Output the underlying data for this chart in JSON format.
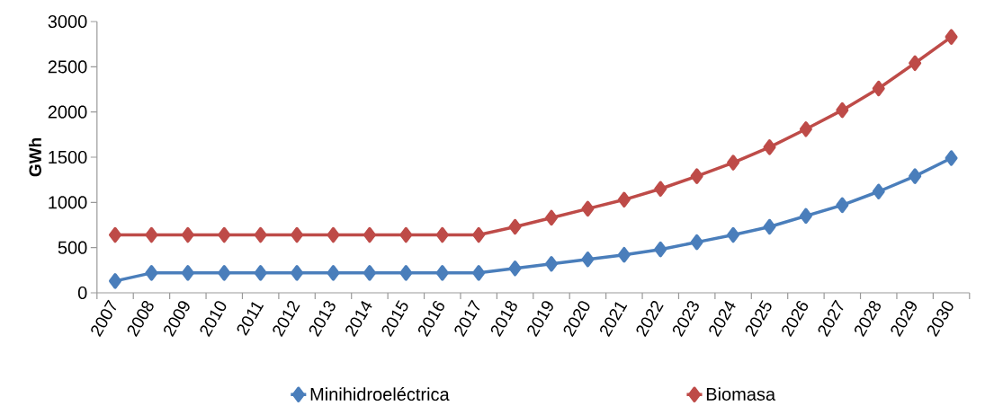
{
  "chart_data": {
    "type": "line",
    "ylabel": "GWh",
    "categories": [
      "2007",
      "2008",
      "2009",
      "2010",
      "2011",
      "2012",
      "2013",
      "2014",
      "2015",
      "2016",
      "2017",
      "2018",
      "2019",
      "2020",
      "2021",
      "2022",
      "2023",
      "2024",
      "2025",
      "2026",
      "2027",
      "2028",
      "2029",
      "2030"
    ],
    "series": [
      {
        "name": "Minihidroeléctrica",
        "color": "#4a7ebb",
        "values": [
          130,
          220,
          220,
          220,
          220,
          220,
          220,
          220,
          220,
          220,
          220,
          270,
          320,
          370,
          420,
          480,
          560,
          640,
          730,
          850,
          970,
          1120,
          1290,
          1490
        ]
      },
      {
        "name": "Biomasa",
        "color": "#be4b48",
        "values": [
          640,
          640,
          640,
          640,
          640,
          640,
          640,
          640,
          640,
          640,
          640,
          730,
          830,
          930,
          1030,
          1150,
          1290,
          1440,
          1610,
          1810,
          2020,
          2260,
          2540,
          2830
        ]
      }
    ],
    "ylim": [
      0,
      3000
    ],
    "yticks": [
      0,
      500,
      1000,
      1500,
      2000,
      2500,
      3000
    ],
    "grid": false,
    "legend": "bottom",
    "marker": "diamond",
    "line_style": "solid"
  }
}
